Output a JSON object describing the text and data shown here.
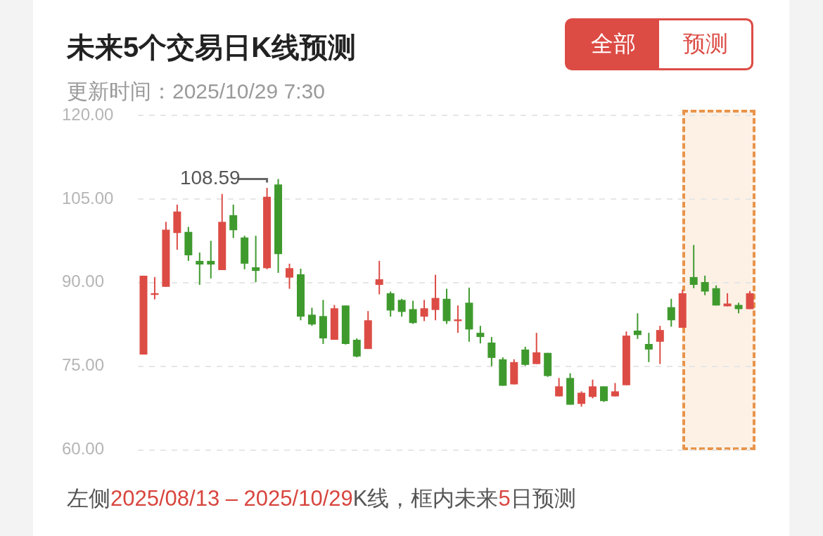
{
  "chart_data": {
    "type": "candlestick",
    "title": "未来5个交易日K线预测",
    "subtitle": "更新时间：2025/10/29 7:30",
    "categories": [
      null,
      null,
      null,
      null,
      null,
      null,
      null,
      null,
      null,
      null,
      null,
      null,
      null,
      null,
      null,
      null,
      null,
      null,
      null,
      null,
      null,
      null,
      null,
      null,
      null,
      null,
      null,
      null,
      null,
      null,
      null,
      null,
      null,
      null,
      null,
      null,
      null,
      null,
      null,
      null,
      null,
      null,
      null,
      null,
      null,
      null,
      null,
      null,
      null,
      null,
      null,
      null,
      null,
      null,
      null
    ],
    "ohlc": [
      [
        77.1,
        91.25,
        77.1,
        91.25
      ],
      [
        87.8,
        91.0,
        87.0,
        88.1
      ],
      [
        89.25,
        100.9,
        89.25,
        99.5
      ],
      [
        98.9,
        104.0,
        95.9,
        102.75
      ],
      [
        99.1,
        100.0,
        93.9,
        94.9
      ],
      [
        93.9,
        95.4,
        89.6,
        93.25
      ],
      [
        93.9,
        97.5,
        90.75,
        93.25
      ],
      [
        92.25,
        105.9,
        92.25,
        100.9
      ],
      [
        102.1,
        104.0,
        98.0,
        99.4
      ],
      [
        98.1,
        98.4,
        92.4,
        93.4
      ],
      [
        92.75,
        98.4,
        90.1,
        92.1
      ],
      [
        92.6,
        107.0,
        92.4,
        105.4
      ],
      [
        107.6,
        108.59,
        91.75,
        95.1
      ],
      [
        90.9,
        93.4,
        88.9,
        92.6
      ],
      [
        91.5,
        92.5,
        83.25,
        83.9
      ],
      [
        84.25,
        85.5,
        82.25,
        82.5
      ],
      [
        84.0,
        86.9,
        79.0,
        80.0
      ],
      [
        79.75,
        86.0,
        79.75,
        85.4
      ],
      [
        85.9,
        85.9,
        78.9,
        79.0
      ],
      [
        79.75,
        80.0,
        76.6,
        76.75
      ],
      [
        78.1,
        84.9,
        78.1,
        83.25
      ],
      [
        89.6,
        93.9,
        87.9,
        90.6
      ],
      [
        88.1,
        88.4,
        83.9,
        85.0
      ],
      [
        86.9,
        87.1,
        83.9,
        84.75
      ],
      [
        85.25,
        86.75,
        82.6,
        82.75
      ],
      [
        83.9,
        86.9,
        83.1,
        85.4
      ],
      [
        85.1,
        91.4,
        83.25,
        87.25
      ],
      [
        87.1,
        88.9,
        82.6,
        83.1
      ],
      [
        83.1,
        85.9,
        81.0,
        83.4
      ],
      [
        86.4,
        89.1,
        79.4,
        81.6
      ],
      [
        81.0,
        82.25,
        79.1,
        80.25
      ],
      [
        79.25,
        80.25,
        75.0,
        76.5
      ],
      [
        76.25,
        76.6,
        71.5,
        71.5
      ],
      [
        71.75,
        76.25,
        71.75,
        75.75
      ],
      [
        78.0,
        78.5,
        75.1,
        75.25
      ],
      [
        75.4,
        81.0,
        75.4,
        77.5
      ],
      [
        77.4,
        77.4,
        73.1,
        73.25
      ],
      [
        69.6,
        72.9,
        69.6,
        71.4
      ],
      [
        72.9,
        73.75,
        68.1,
        68.1
      ],
      [
        68.25,
        70.5,
        67.75,
        70.25
      ],
      [
        69.5,
        72.6,
        69.25,
        71.4
      ],
      [
        71.4,
        71.4,
        68.6,
        68.75
      ],
      [
        69.6,
        72.0,
        69.6,
        70.5
      ],
      [
        71.6,
        81.25,
        71.6,
        80.5
      ],
      [
        81.4,
        84.5,
        79.9,
        80.6
      ],
      [
        79.0,
        81.0,
        75.75,
        78.0
      ],
      [
        79.4,
        82.25,
        75.4,
        81.5
      ],
      [
        85.6,
        87.1,
        82.1,
        83.25
      ],
      [
        81.9,
        88.75,
        81.9,
        88.1
      ],
      [
        91.0,
        96.75,
        89.0,
        89.6
      ],
      [
        90.1,
        91.25,
        87.75,
        88.4
      ],
      [
        89.0,
        89.5,
        85.9,
        85.9
      ],
      [
        85.75,
        88.1,
        85.75,
        86.25
      ],
      [
        86.0,
        86.4,
        84.5,
        85.25
      ],
      [
        85.25,
        88.5,
        85.25,
        88.1
      ]
    ],
    "colors": [
      "#dc4c45",
      "#dc4c45",
      "#dc4c45",
      "#dc4c45",
      "#3f9a2e",
      "#3f9a2e",
      "#3f9a2e",
      "#dc4c45",
      "#3f9a2e",
      "#3f9a2e",
      "#3f9a2e",
      "#dc4c45",
      "#3f9a2e",
      "#dc4c45",
      "#3f9a2e",
      "#3f9a2e",
      "#3f9a2e",
      "#dc4c45",
      "#3f9a2e",
      "#3f9a2e",
      "#dc4c45",
      "#dc4c45",
      "#3f9a2e",
      "#3f9a2e",
      "#3f9a2e",
      "#dc4c45",
      "#dc4c45",
      "#3f9a2e",
      "#dc4c45",
      "#3f9a2e",
      "#3f9a2e",
      "#3f9a2e",
      "#3f9a2e",
      "#dc4c45",
      "#3f9a2e",
      "#dc4c45",
      "#3f9a2e",
      "#dc4c45",
      "#3f9a2e",
      "#dc4c45",
      "#dc4c45",
      "#3f9a2e",
      "#dc4c45",
      "#dc4c45",
      "#3f9a2e",
      "#3f9a2e",
      "#dc4c45",
      "#3f9a2e",
      "#dc4c45",
      "#3f9a2e",
      "#3f9a2e",
      "#3f9a2e",
      "#dc4c45",
      "#3f9a2e",
      "#dc4c45"
    ],
    "ylim": [
      60,
      120
    ],
    "yticks": [
      {
        "value": 60,
        "label": "60.00"
      },
      {
        "value": 75,
        "label": "75.00"
      },
      {
        "value": 90,
        "label": "90.00"
      },
      {
        "value": 105,
        "label": "105.00"
      },
      {
        "value": 120,
        "label": "120.00"
      }
    ],
    "grid": "y",
    "tick_labels": "y",
    "annotations": [
      "全部",
      "预测",
      "108.59",
      "左侧2025/08/13 – 2025/10/29K线，框内未来5日预测"
    ]
  }
}
